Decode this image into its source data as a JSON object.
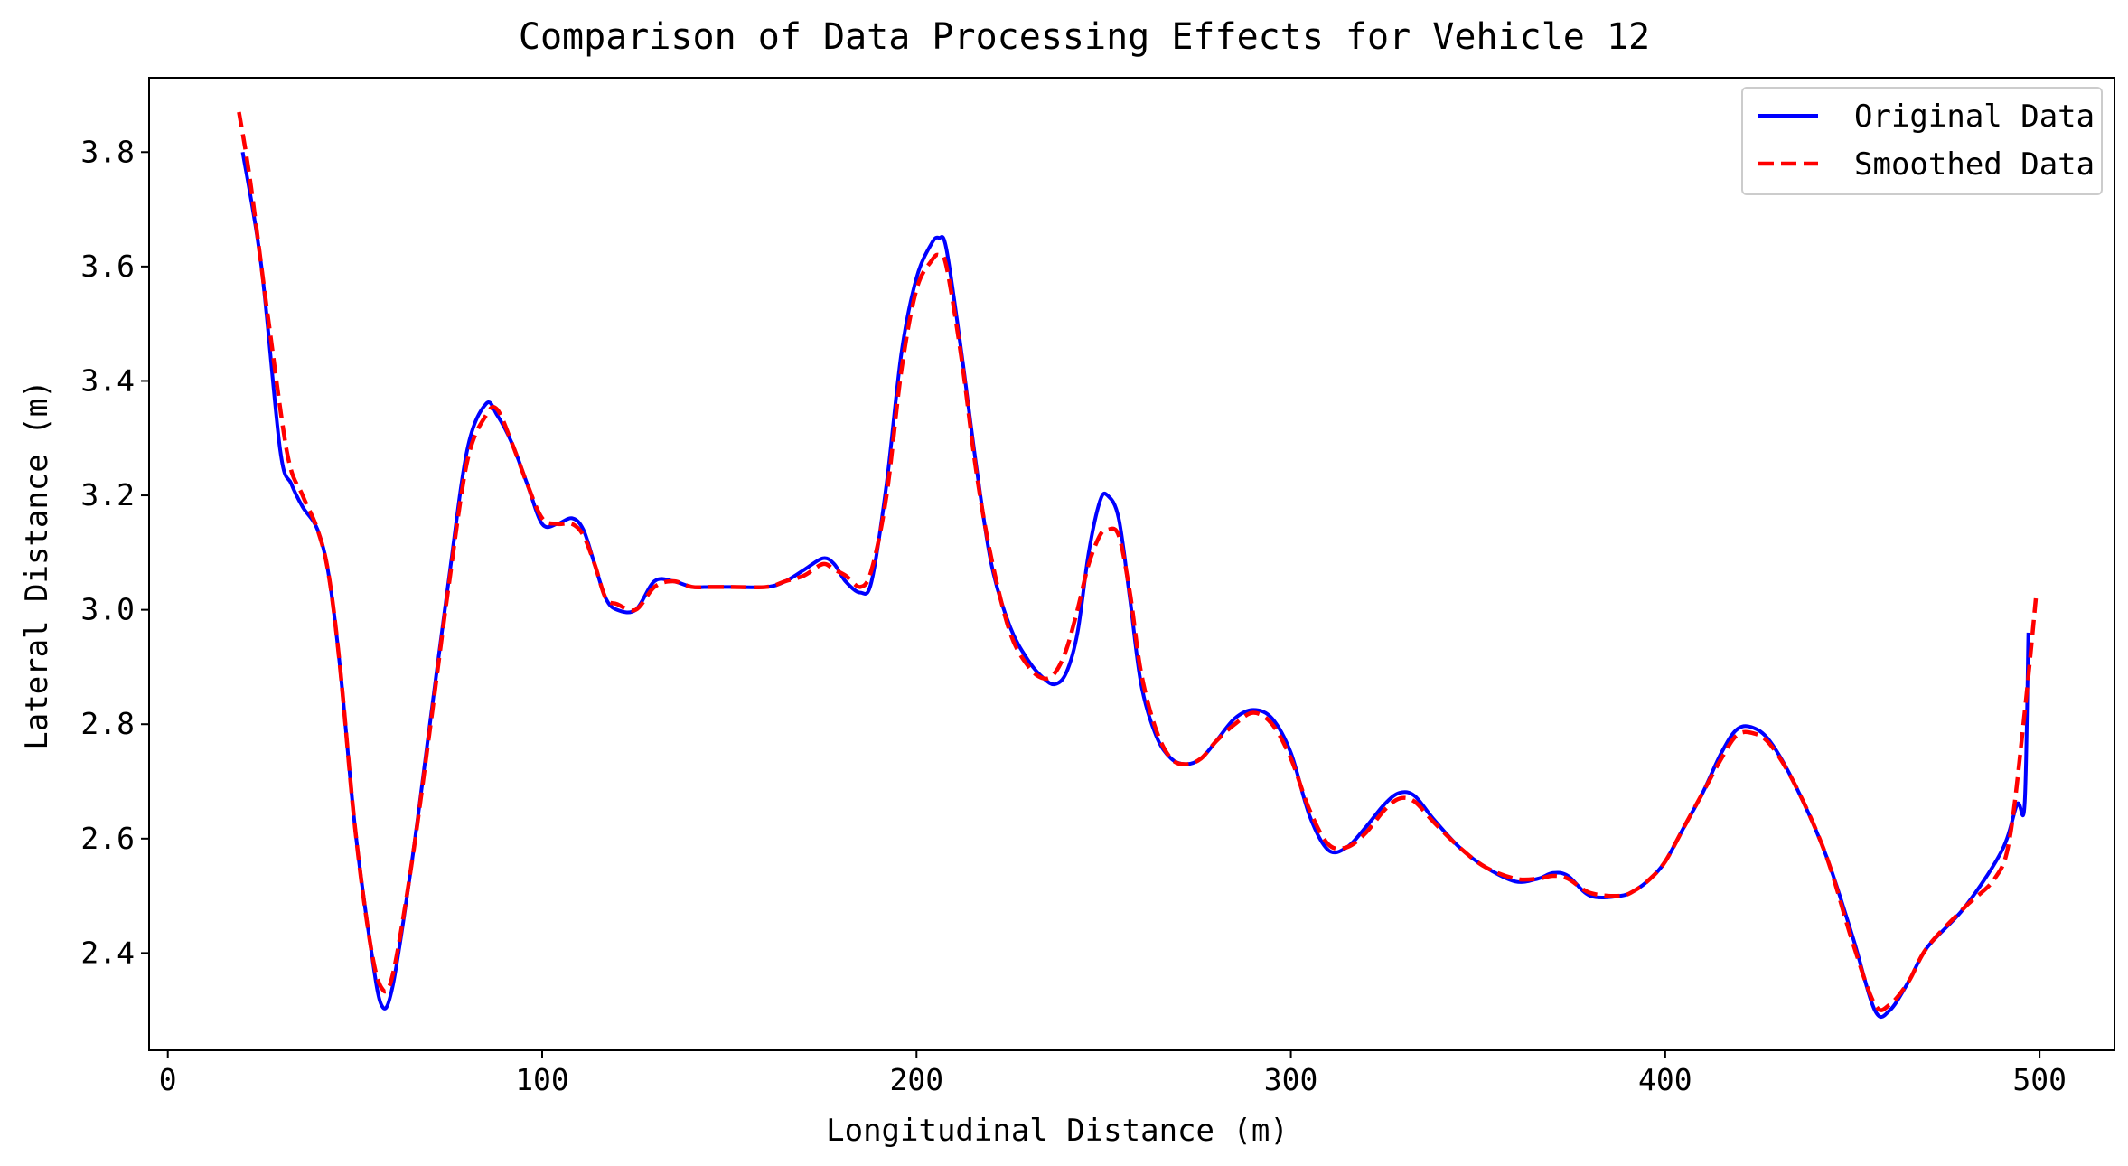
{
  "chart_data": {
    "type": "line",
    "title": "Comparison of Data Processing Effects for Vehicle 12",
    "xlabel": "Longitudinal Distance (m)",
    "ylabel": "Lateral Distance (m)",
    "xlim": [
      -5,
      520
    ],
    "ylim": [
      2.23,
      3.93
    ],
    "xticks": [
      0,
      100,
      200,
      300,
      400,
      500
    ],
    "yticks": [
      2.4,
      2.6,
      2.8,
      3.0,
      3.2,
      3.4,
      3.6,
      3.8
    ],
    "ytick_labels": [
      "2.4",
      "2.6",
      "2.8",
      "3.0",
      "3.2",
      "3.4",
      "3.6",
      "3.8"
    ],
    "grid": false,
    "legend_position": "top-right",
    "series": [
      {
        "name": "Original Data",
        "color": "#0000ff",
        "style": "solid",
        "x": [
          20,
          25,
          30,
          33,
          36,
          40,
          43,
          46,
          50,
          54,
          57,
          60,
          65,
          70,
          75,
          80,
          85,
          88,
          92,
          96,
          100,
          104,
          108,
          111,
          114,
          117,
          120,
          125,
          130,
          135,
          140,
          145,
          150,
          160,
          165,
          170,
          175,
          178,
          181,
          185,
          188,
          192,
          196,
          200,
          204,
          206,
          208,
          212,
          216,
          220,
          225,
          230,
          234,
          237,
          240,
          243,
          246,
          249,
          251,
          254,
          257,
          260,
          264,
          268,
          272,
          276,
          280,
          285,
          290,
          295,
          300,
          305,
          310,
          315,
          320,
          325,
          329,
          333,
          338,
          345,
          352,
          360,
          366,
          370,
          374,
          380,
          388,
          392,
          396,
          400,
          405,
          410,
          415,
          419,
          423,
          428,
          435,
          443,
          450,
          456,
          460,
          465,
          470,
          480,
          490,
          494,
          496,
          497
        ],
        "y": [
          3.8,
          3.6,
          3.28,
          3.22,
          3.18,
          3.14,
          3.06,
          2.9,
          2.62,
          2.42,
          2.31,
          2.34,
          2.55,
          2.8,
          3.05,
          3.28,
          3.36,
          3.34,
          3.29,
          3.22,
          3.15,
          3.15,
          3.16,
          3.14,
          3.08,
          3.02,
          3.0,
          3.0,
          3.05,
          3.05,
          3.04,
          3.04,
          3.04,
          3.04,
          3.05,
          3.07,
          3.09,
          3.08,
          3.05,
          3.03,
          3.05,
          3.22,
          3.45,
          3.58,
          3.64,
          3.65,
          3.63,
          3.45,
          3.25,
          3.08,
          2.97,
          2.91,
          2.88,
          2.87,
          2.89,
          2.96,
          3.1,
          3.19,
          3.2,
          3.16,
          3.02,
          2.87,
          2.78,
          2.74,
          2.73,
          2.74,
          2.77,
          2.81,
          2.825,
          2.81,
          2.75,
          2.64,
          2.58,
          2.585,
          2.62,
          2.66,
          2.68,
          2.675,
          2.635,
          2.585,
          2.55,
          2.525,
          2.53,
          2.54,
          2.535,
          2.5,
          2.5,
          2.51,
          2.53,
          2.56,
          2.62,
          2.68,
          2.75,
          2.79,
          2.795,
          2.77,
          2.69,
          2.57,
          2.43,
          2.3,
          2.3,
          2.35,
          2.41,
          2.48,
          2.58,
          2.66,
          2.66,
          2.96
        ]
      },
      {
        "name": "Smoothed Data",
        "color": "#ff0000",
        "style": "dashed",
        "x": [
          19,
          22,
          27,
          32,
          36,
          40,
          43,
          46,
          50,
          54,
          57,
          60,
          65,
          70,
          75,
          80,
          85,
          88,
          92,
          96,
          100,
          104,
          108,
          111,
          114,
          117,
          120,
          125,
          130,
          135,
          140,
          145,
          150,
          160,
          165,
          170,
          175,
          178,
          181,
          185,
          188,
          192,
          196,
          200,
          204,
          206,
          208,
          212,
          216,
          220,
          225,
          230,
          234,
          237,
          240,
          243,
          246,
          249,
          251,
          254,
          257,
          260,
          264,
          268,
          272,
          276,
          280,
          285,
          290,
          295,
          300,
          305,
          310,
          315,
          320,
          325,
          329,
          333,
          338,
          345,
          352,
          360,
          366,
          370,
          374,
          380,
          388,
          392,
          396,
          400,
          405,
          410,
          415,
          419,
          423,
          428,
          435,
          443,
          450,
          456,
          460,
          465,
          470,
          480,
          488,
          492,
          496,
          499
        ],
        "y": [
          3.87,
          3.75,
          3.5,
          3.27,
          3.2,
          3.14,
          3.06,
          2.9,
          2.62,
          2.42,
          2.34,
          2.36,
          2.55,
          2.79,
          3.04,
          3.26,
          3.34,
          3.35,
          3.29,
          3.22,
          3.16,
          3.15,
          3.15,
          3.13,
          3.08,
          3.02,
          3.01,
          3.0,
          3.04,
          3.05,
          3.04,
          3.04,
          3.04,
          3.04,
          3.05,
          3.06,
          3.08,
          3.07,
          3.06,
          3.04,
          3.07,
          3.2,
          3.42,
          3.56,
          3.61,
          3.62,
          3.6,
          3.44,
          3.24,
          3.09,
          2.96,
          2.9,
          2.88,
          2.89,
          2.93,
          3.0,
          3.08,
          3.13,
          3.14,
          3.13,
          3.03,
          2.89,
          2.79,
          2.74,
          2.73,
          2.74,
          2.77,
          2.8,
          2.82,
          2.8,
          2.74,
          2.65,
          2.59,
          2.585,
          2.61,
          2.65,
          2.67,
          2.665,
          2.63,
          2.585,
          2.55,
          2.53,
          2.53,
          2.535,
          2.53,
          2.505,
          2.5,
          2.51,
          2.53,
          2.56,
          2.62,
          2.68,
          2.74,
          2.78,
          2.785,
          2.765,
          2.69,
          2.57,
          2.42,
          2.31,
          2.31,
          2.35,
          2.41,
          2.48,
          2.53,
          2.6,
          2.82,
          3.02
        ]
      }
    ]
  }
}
